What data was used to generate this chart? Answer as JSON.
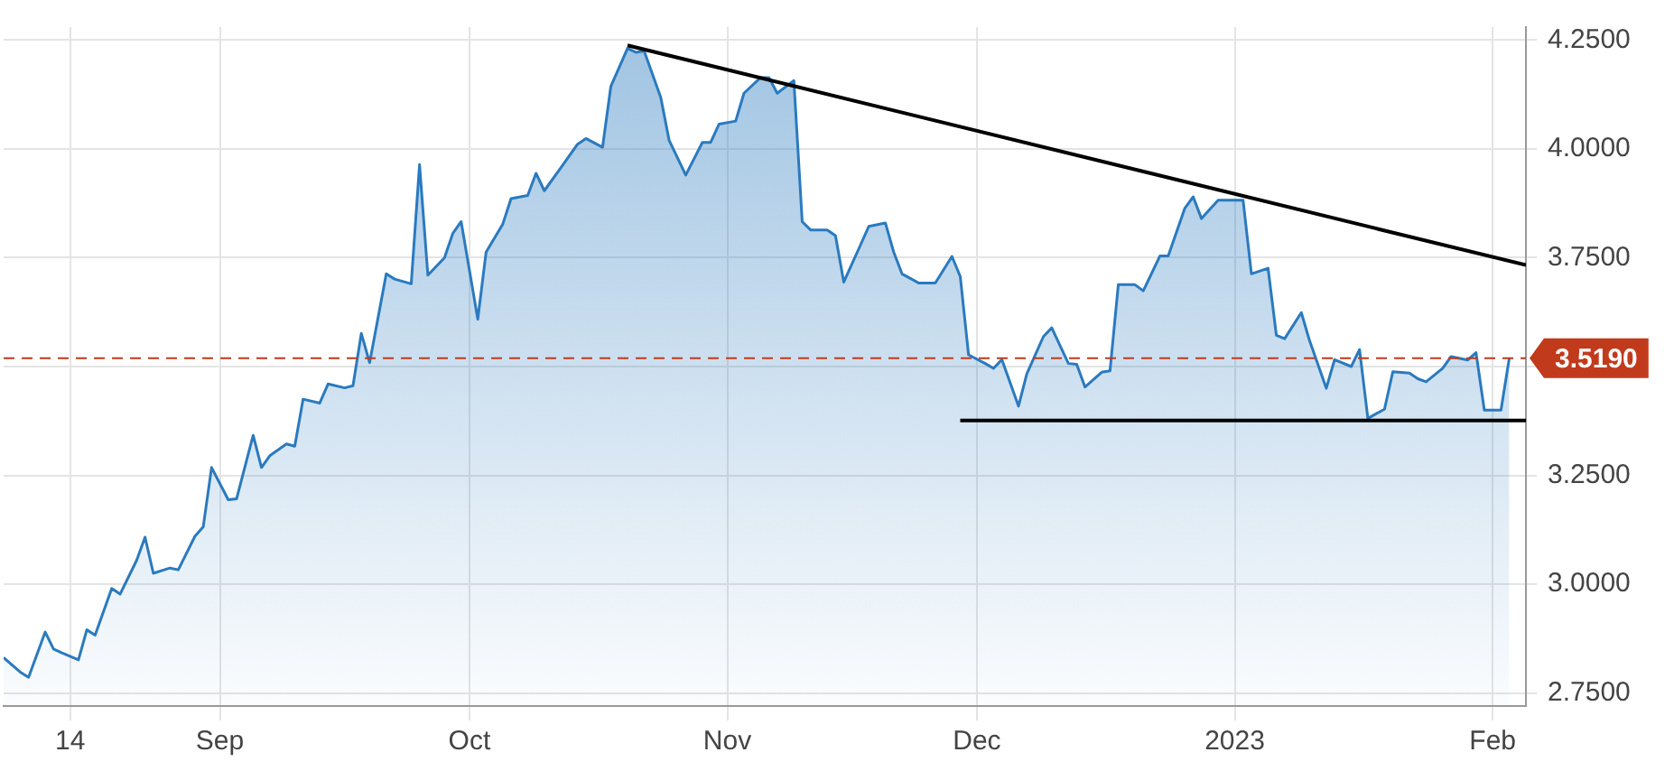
{
  "chart_data": {
    "type": "area",
    "x": [
      "2022-08-06",
      "2022-08-08",
      "2022-08-09",
      "2022-08-11",
      "2022-08-12",
      "2022-08-13",
      "2022-08-15",
      "2022-08-16",
      "2022-08-17",
      "2022-08-19",
      "2022-08-20",
      "2022-08-22",
      "2022-08-23",
      "2022-08-24",
      "2022-08-26",
      "2022-08-27",
      "2022-08-29",
      "2022-08-30",
      "2022-08-31",
      "2022-09-02",
      "2022-09-03",
      "2022-09-05",
      "2022-09-06",
      "2022-09-07",
      "2022-09-09",
      "2022-09-10",
      "2022-09-11",
      "2022-09-13",
      "2022-09-14",
      "2022-09-16",
      "2022-09-17",
      "2022-09-18",
      "2022-09-19",
      "2022-09-21",
      "2022-09-22",
      "2022-09-24",
      "2022-09-25",
      "2022-09-26",
      "2022-09-28",
      "2022-09-29",
      "2022-09-30",
      "2022-10-02",
      "2022-10-03",
      "2022-10-05",
      "2022-10-06",
      "2022-10-08",
      "2022-10-09",
      "2022-10-10",
      "2022-10-12",
      "2022-10-14",
      "2022-10-15",
      "2022-10-17",
      "2022-10-18",
      "2022-10-20",
      "2022-10-21",
      "2022-10-22",
      "2022-10-24",
      "2022-10-25",
      "2022-10-27",
      "2022-10-29",
      "2022-10-30",
      "2022-10-31",
      "2022-11-02",
      "2022-11-03",
      "2022-11-05",
      "2022-11-06",
      "2022-11-07",
      "2022-11-09",
      "2022-11-10",
      "2022-11-11",
      "2022-11-13",
      "2022-11-14",
      "2022-11-15",
      "2022-11-17",
      "2022-11-18",
      "2022-11-20",
      "2022-11-21",
      "2022-11-22",
      "2022-11-24",
      "2022-11-25",
      "2022-11-26",
      "2022-11-28",
      "2022-11-29",
      "2022-11-30",
      "2022-12-02",
      "2022-12-03",
      "2022-12-04",
      "2022-12-06",
      "2022-12-07",
      "2022-12-09",
      "2022-12-10",
      "2022-12-12",
      "2022-12-13",
      "2022-12-14",
      "2022-12-16",
      "2022-12-17",
      "2022-12-18",
      "2022-12-20",
      "2022-12-21",
      "2022-12-23",
      "2022-12-24",
      "2022-12-26",
      "2022-12-27",
      "2022-12-28",
      "2022-12-30",
      "2022-12-31",
      "2023-01-02",
      "2023-01-03",
      "2023-01-05",
      "2023-01-06",
      "2023-01-07",
      "2023-01-09",
      "2023-01-10",
      "2023-01-12",
      "2023-01-13",
      "2023-01-15",
      "2023-01-16",
      "2023-01-17",
      "2023-01-19",
      "2023-01-20",
      "2023-01-22",
      "2023-01-23",
      "2023-01-24",
      "2023-01-26",
      "2023-01-27",
      "2023-01-29",
      "2023-01-30",
      "2023-01-31",
      "2023-02-02",
      "2023-02-03"
    ],
    "series": [
      {
        "color": "#2a7abf",
        "values": [
          2.831,
          2.798,
          2.786,
          2.89,
          2.851,
          2.842,
          2.826,
          2.895,
          2.883,
          2.99,
          2.977,
          3.055,
          3.108,
          3.025,
          3.037,
          3.033,
          3.11,
          3.132,
          3.268,
          3.194,
          3.196,
          3.342,
          3.268,
          3.295,
          3.322,
          3.317,
          3.425,
          3.416,
          3.46,
          3.451,
          3.456,
          3.576,
          3.509,
          3.713,
          3.701,
          3.69,
          3.964,
          3.71,
          3.75,
          3.806,
          3.833,
          3.609,
          3.763,
          3.827,
          3.886,
          3.893,
          3.944,
          3.904,
          3.957,
          4.011,
          4.024,
          4.004,
          4.144,
          4.231,
          4.222,
          4.225,
          4.118,
          4.02,
          3.94,
          4.015,
          4.015,
          4.057,
          4.064,
          4.128,
          4.164,
          4.164,
          4.128,
          4.157,
          3.833,
          3.814,
          3.814,
          3.801,
          3.694,
          3.779,
          3.822,
          3.83,
          3.763,
          3.713,
          3.692,
          3.692,
          3.692,
          3.753,
          3.707,
          3.527,
          3.507,
          3.496,
          3.516,
          3.409,
          3.483,
          3.569,
          3.589,
          3.507,
          3.505,
          3.453,
          3.487,
          3.49,
          3.688,
          3.688,
          3.674,
          3.754,
          3.754,
          3.864,
          3.89,
          3.84,
          3.882,
          3.882,
          3.882,
          3.713,
          3.726,
          3.572,
          3.564,
          3.624,
          3.559,
          3.45,
          3.516,
          3.5,
          3.539,
          3.381,
          3.402,
          3.488,
          3.485,
          3.472,
          3.465,
          3.496,
          3.523,
          3.515,
          3.532,
          3.4,
          3.4,
          3.519
        ]
      },
      {
        "type": "line",
        "color": "#000000",
        "x": [
          "2022-10-20",
          "2023-02-05"
        ],
        "values": [
          4.238,
          3.733
        ]
      },
      {
        "type": "line",
        "color": "#000000",
        "x": [
          "2022-11-29",
          "2023-02-05"
        ],
        "values": [
          3.376,
          3.376
        ]
      }
    ],
    "xlim": [
      "2022-08-06",
      "2023-02-05"
    ],
    "xticks": [
      {
        "value": "2022-08-14",
        "label": "14"
      },
      {
        "value": "2022-09-01",
        "label": "Sep"
      },
      {
        "value": "2022-10-01",
        "label": "Oct"
      },
      {
        "value": "2022-11-01",
        "label": "Nov"
      },
      {
        "value": "2022-12-01",
        "label": "Dec"
      },
      {
        "value": "2023-01-01",
        "label": "2023"
      },
      {
        "value": "2023-02-01",
        "label": "Feb"
      }
    ],
    "ylim": [
      2.72,
      4.28
    ],
    "yticks": [
      {
        "value": 2.75,
        "label": "2.7500"
      },
      {
        "value": 3.0,
        "label": "3.0000"
      },
      {
        "value": 3.25,
        "label": "3.2500"
      },
      {
        "value": 3.5,
        "label": null
      },
      {
        "value": 3.75,
        "label": "3.7500"
      },
      {
        "value": 4.0,
        "label": "4.0000"
      },
      {
        "value": 4.25,
        "label": "4.2500"
      }
    ],
    "ref_lines": [
      {
        "axis": "y",
        "value": 3.519,
        "label": "3.5190",
        "color": "#c23a1c",
        "line_style": "dashed"
      }
    ],
    "grid": true
  }
}
